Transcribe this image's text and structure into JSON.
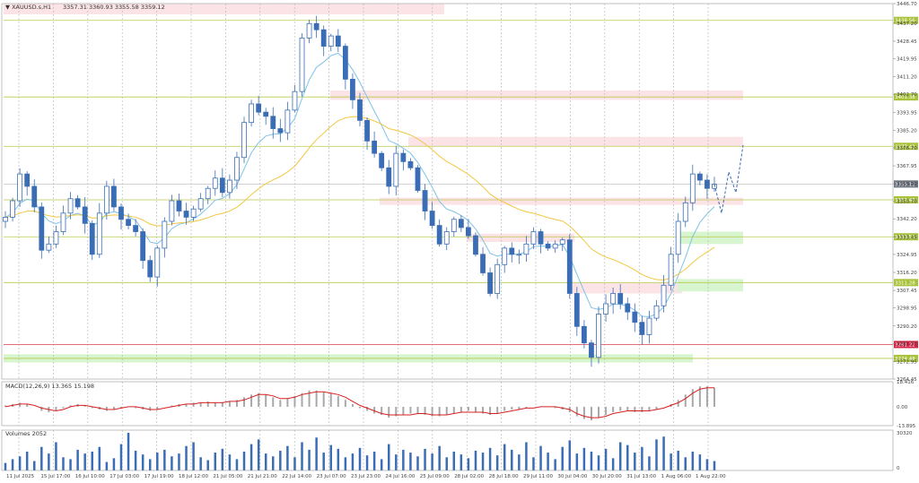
{
  "header": {
    "symbol": "▼ XAUUSD.s,H1",
    "ohlc": "3357.31 3360.93 3355.58 3359.12"
  },
  "colors": {
    "bull": "#3a6db5",
    "bear": "#3a6db5",
    "ema_fast": "#7ec2e6",
    "ema_slow": "#f2c744",
    "level_line": "#b9c94a",
    "resistance_line": "#e05a6a",
    "zone_red": "#fbe3e6",
    "zone_green": "#d7f5cf",
    "macd_hist": "#a8a8a8",
    "macd_signal": "#d62020",
    "volume": "#3a6db5",
    "grid": "#b0b0b0",
    "label_green": "#a9c23c",
    "label_red": "#d62043",
    "price_label": "#6b7280"
  },
  "chart_data": [
    {
      "type": "candlestick",
      "title": "XAUUSD.s,H1",
      "ylim": [
        3264.45,
        3446.7
      ],
      "price_ticks": [
        "3446.70",
        "3437.20",
        "3428.45",
        "3419.95",
        "3411.20",
        "3402.70",
        "3393.95",
        "3385.20",
        "3376.70",
        "3367.95",
        "3359.20",
        "3350.70",
        "3342.20",
        "3333.45",
        "3324.95",
        "3316.20",
        "3307.45",
        "3298.95",
        "3290.20",
        "3281.70",
        "3272.95",
        "3264.45"
      ],
      "x_labels": [
        "11 Jul 2025",
        "15 Jul 17:00",
        "16 Jul 10:00",
        "17 Jul 03:00",
        "17 Jul 19:00",
        "18 Jul 12:00",
        "21 Jul 05:00",
        "21 Jul 21:00",
        "22 Jul 14:00",
        "23 Jul 07:00",
        "23 Jul 23:00",
        "24 Jul 16:00",
        "25 Jul 09:00",
        "28 Jul 02:00",
        "28 Jul 18:00",
        "29 Jul 11:00",
        "30 Jul 04:00",
        "30 Jul 20:00",
        "31 Jul 13:00",
        "1 Aug 06:00",
        "1 Aug 22:00"
      ],
      "levels": [
        {
          "value": 3438.56,
          "label": "3438.56",
          "kind": "green"
        },
        {
          "value": 3401.38,
          "label": "3401.38",
          "kind": "green"
        },
        {
          "value": 3377.43,
          "label": "3377.43",
          "kind": "green"
        },
        {
          "value": 3351.45,
          "label": "3351.45",
          "kind": "green"
        },
        {
          "value": 3333.51,
          "label": "3333.51",
          "kind": "green"
        },
        {
          "value": 3311.28,
          "label": "3311.28",
          "kind": "green"
        },
        {
          "value": 3281.22,
          "label": "3281.22",
          "kind": "red"
        },
        {
          "value": 3274.48,
          "label": "3274.48",
          "kind": "green"
        }
      ],
      "current_price": {
        "value": 3359.12,
        "label": "3359.12"
      },
      "close_path": [
        3343,
        3351,
        3364,
        3358,
        3348,
        3327,
        3330,
        3336,
        3345,
        3352,
        3348,
        3340,
        3325,
        3345,
        3358,
        3348,
        3342,
        3339,
        3336,
        3322,
        3314,
        3328,
        3341,
        3351,
        3346,
        3343,
        3347,
        3352,
        3357,
        3362,
        3355,
        3361,
        3372,
        3389,
        3398,
        3394,
        3392,
        3386,
        3384,
        3395,
        3404,
        3430,
        3437,
        3434,
        3426,
        3431,
        3426,
        3410,
        3400,
        3390,
        3380,
        3374,
        3367,
        3358,
        3374,
        3370,
        3367,
        3356,
        3346,
        3339,
        3330,
        3336,
        3342,
        3338,
        3334,
        3325,
        3316,
        3306,
        3320,
        3328,
        3325,
        3325,
        3330,
        3336,
        3330,
        3328,
        3330,
        3332,
        3306,
        3290,
        3282,
        3275,
        3296,
        3301,
        3306,
        3301,
        3297,
        3292,
        3286,
        3294,
        3300,
        3310,
        3325,
        3341,
        3350,
        3364,
        3361,
        3357,
        3359
      ],
      "volumes": [
        8,
        12,
        15,
        20,
        10,
        25,
        18,
        30,
        14,
        12,
        22,
        18,
        20,
        25,
        9,
        13,
        28,
        40,
        21,
        17,
        12,
        19,
        22,
        15,
        18,
        26,
        30,
        14,
        11,
        19,
        23,
        17,
        12,
        20,
        28,
        33,
        18,
        15,
        21,
        26,
        14,
        30,
        22,
        35,
        19,
        27,
        23,
        14,
        18,
        24,
        16,
        20,
        12,
        28,
        17,
        22,
        19,
        15,
        23,
        18,
        26,
        14,
        20,
        17,
        13,
        21,
        19,
        24,
        16,
        28,
        22,
        17,
        30,
        14,
        26,
        19,
        12,
        25,
        32,
        18,
        24,
        20,
        16,
        23,
        13,
        30,
        27,
        19,
        25,
        15,
        33,
        36,
        18,
        21,
        14,
        20,
        17,
        12,
        10
      ],
      "macd": {
        "ylim": [
          -13.895,
          18.416
        ],
        "ticks": [
          "18.416",
          "0.00",
          "-13.895"
        ],
        "label": "MACD(12,26,9) 13.365 15.198",
        "hist": [
          1,
          2,
          3,
          2,
          0,
          -3,
          -4,
          -3,
          -1,
          1,
          2,
          1,
          -1,
          -2,
          -3,
          -2,
          -1,
          0,
          -1,
          -2,
          -3,
          -2,
          0,
          1,
          2,
          2,
          3,
          3,
          4,
          3,
          3,
          4,
          5,
          7,
          9,
          10,
          9,
          7,
          5,
          6,
          8,
          10,
          12,
          12,
          11,
          10,
          8,
          5,
          2,
          -1,
          -3,
          -5,
          -6,
          -8,
          -7,
          -6,
          -5,
          -5,
          -6,
          -7,
          -7,
          -6,
          -5,
          -4,
          -3,
          -4,
          -5,
          -6,
          -5,
          -3,
          -2,
          -2,
          -1,
          0,
          0,
          0,
          -1,
          -2,
          -4,
          -7,
          -9,
          -10,
          -8,
          -6,
          -4,
          -3,
          -3,
          -4,
          -4,
          -3,
          -2,
          0,
          2,
          5,
          9,
          13,
          15,
          15,
          14
        ],
        "signal": [
          0,
          1,
          2,
          2,
          1,
          -1,
          -2,
          -3,
          -2,
          0,
          1,
          1,
          0,
          -1,
          -2,
          -2,
          -1,
          0,
          0,
          -1,
          -2,
          -2,
          -1,
          0,
          1,
          2,
          2,
          3,
          3,
          3,
          3,
          4,
          4,
          5,
          7,
          9,
          9,
          8,
          6,
          6,
          7,
          9,
          10,
          11,
          11,
          10,
          9,
          7,
          4,
          1,
          -1,
          -3,
          -5,
          -6,
          -6,
          -6,
          -6,
          -5,
          -5,
          -6,
          -6,
          -6,
          -5,
          -4,
          -4,
          -4,
          -4,
          -5,
          -5,
          -4,
          -3,
          -2,
          -1,
          -1,
          0,
          0,
          0,
          -1,
          -2,
          -5,
          -7,
          -8,
          -8,
          -7,
          -5,
          -4,
          -3,
          -3,
          -3,
          -3,
          -2,
          -1,
          1,
          3,
          6,
          10,
          13,
          14,
          14
        ]
      },
      "volume_panel": {
        "label": "Volumes 2052",
        "ticks": [
          "30320",
          "0"
        ]
      }
    }
  ]
}
